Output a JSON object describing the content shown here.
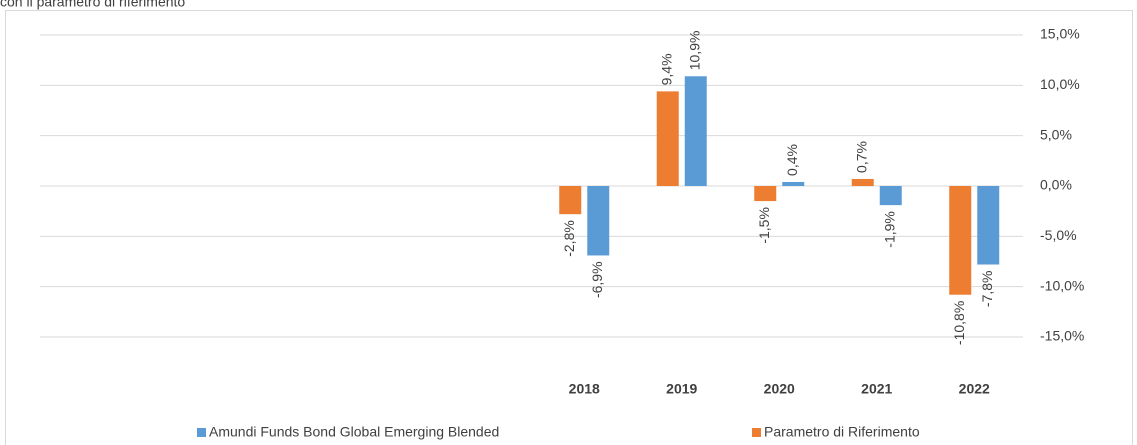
{
  "chart_data": {
    "type": "bar",
    "title": "con il parametro di riferimento",
    "categories": [
      null,
      null,
      null,
      null,
      null,
      "2018",
      "2019",
      "2020",
      "2021",
      "2022"
    ],
    "series": [
      {
        "name": "Amundi Funds Bond Global Emerging Blended",
        "color": "#5b9bd5",
        "values": [
          null,
          null,
          null,
          null,
          null,
          -6.9,
          10.9,
          0.4,
          -1.9,
          -7.8
        ],
        "value_labels": [
          null,
          null,
          null,
          null,
          null,
          "-6,9%",
          "10,9%",
          "0,4%",
          "-1,9%",
          "-7,8%"
        ]
      },
      {
        "name": "Parametro di Riferimento",
        "color": "#ed7d31",
        "values": [
          null,
          null,
          null,
          null,
          null,
          -2.8,
          9.4,
          -1.5,
          0.7,
          -10.8
        ],
        "value_labels": [
          null,
          null,
          null,
          null,
          null,
          "-2,8%",
          "9,4%",
          "-1,5%",
          "0,7%",
          "-10,8%"
        ]
      }
    ],
    "ylim": [
      -15,
      15
    ],
    "yticks": [
      {
        "value": 15,
        "label": "15,0%"
      },
      {
        "value": 10,
        "label": "10,0%"
      },
      {
        "value": 5,
        "label": "5,0%"
      },
      {
        "value": 0,
        "label": "0,0%"
      },
      {
        "value": -5,
        "label": "-5,0%"
      },
      {
        "value": -10,
        "label": "-10,0%"
      },
      {
        "value": -15,
        "label": "-15,0%"
      }
    ],
    "grid": true,
    "legend": "bottom"
  }
}
